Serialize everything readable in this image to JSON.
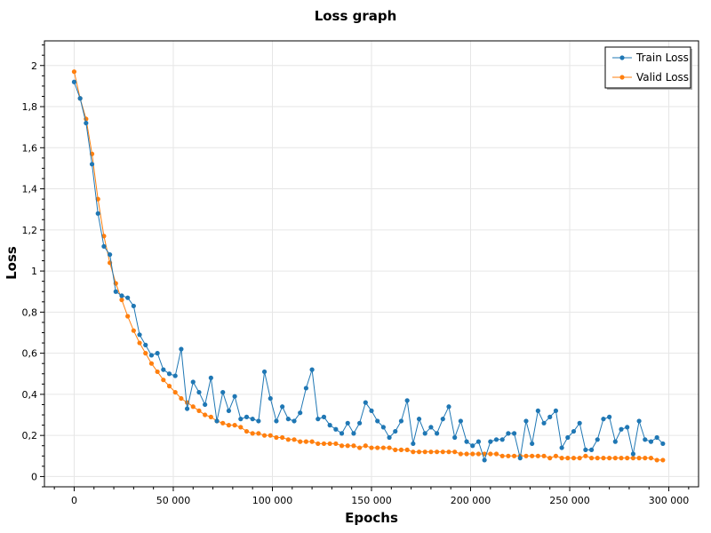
{
  "chart_data": {
    "type": "line",
    "title": "Loss graph",
    "xlabel": "Epochs",
    "ylabel": "Loss",
    "xlim": [
      -15000,
      315000
    ],
    "ylim": [
      -0.05,
      2.12
    ],
    "x_ticks": [
      0,
      50000,
      100000,
      150000,
      200000,
      250000,
      300000
    ],
    "x_tick_labels": [
      "0",
      "50 000",
      "100 000",
      "150 000",
      "200 000",
      "250 000",
      "300 000"
    ],
    "y_ticks": [
      0,
      0.2,
      0.4,
      0.6,
      0.8,
      1,
      1.2,
      1.4,
      1.6,
      1.8,
      2
    ],
    "y_tick_labels": [
      "0",
      "0,2",
      "0,4",
      "0,6",
      "0,8",
      "1",
      "1,2",
      "1,4",
      "1,6",
      "1,8",
      "2"
    ],
    "grid": true,
    "legend_position": "top-right",
    "x": [
      0,
      3000,
      6000,
      9000,
      12000,
      15000,
      18000,
      21000,
      24000,
      27000,
      30000,
      33000,
      36000,
      39000,
      42000,
      45000,
      48000,
      51000,
      54000,
      57000,
      60000,
      63000,
      66000,
      69000,
      72000,
      75000,
      78000,
      81000,
      84000,
      87000,
      90000,
      93000,
      96000,
      99000,
      102000,
      105000,
      108000,
      111000,
      114000,
      117000,
      120000,
      123000,
      126000,
      129000,
      132000,
      135000,
      138000,
      141000,
      144000,
      147000,
      150000,
      153000,
      156000,
      159000,
      162000,
      165000,
      168000,
      171000,
      174000,
      177000,
      180000,
      183000,
      186000,
      189000,
      192000,
      195000,
      198000,
      201000,
      204000,
      207000,
      210000,
      213000,
      216000,
      219000,
      222000,
      225000,
      228000,
      231000,
      234000,
      237000,
      240000,
      243000,
      246000,
      249000,
      252000,
      255000,
      258000,
      261000,
      264000,
      267000,
      270000,
      273000,
      276000,
      279000,
      282000,
      285000,
      288000,
      291000,
      294000,
      297000
    ],
    "series": [
      {
        "name": "Train Loss",
        "color": "#1f77b4",
        "values": [
          1.92,
          1.84,
          1.72,
          1.52,
          1.28,
          1.12,
          1.08,
          0.9,
          0.88,
          0.87,
          0.83,
          0.69,
          0.64,
          0.59,
          0.6,
          0.52,
          0.5,
          0.49,
          0.62,
          0.33,
          0.46,
          0.41,
          0.35,
          0.48,
          0.27,
          0.41,
          0.32,
          0.39,
          0.28,
          0.29,
          0.28,
          0.27,
          0.51,
          0.38,
          0.27,
          0.34,
          0.28,
          0.27,
          0.31,
          0.43,
          0.52,
          0.28,
          0.29,
          0.25,
          0.23,
          0.21,
          0.26,
          0.21,
          0.26,
          0.36,
          0.32,
          0.27,
          0.24,
          0.19,
          0.22,
          0.27,
          0.37,
          0.16,
          0.28,
          0.21,
          0.24,
          0.21,
          0.28,
          0.34,
          0.19,
          0.27,
          0.17,
          0.15,
          0.17,
          0.08,
          0.17,
          0.18,
          0.18,
          0.21,
          0.21,
          0.09,
          0.27,
          0.16,
          0.32,
          0.26,
          0.29,
          0.32,
          0.14,
          0.19,
          0.22,
          0.26,
          0.13,
          0.13,
          0.18,
          0.28,
          0.29,
          0.17,
          0.23,
          0.24,
          0.11,
          0.27,
          0.18,
          0.17,
          0.19,
          0.16
        ]
      },
      {
        "name": "Valid Loss",
        "color": "#ff7f0e",
        "values": [
          1.97,
          1.84,
          1.74,
          1.57,
          1.35,
          1.17,
          1.04,
          0.94,
          0.86,
          0.78,
          0.71,
          0.65,
          0.6,
          0.55,
          0.51,
          0.47,
          0.44,
          0.41,
          0.38,
          0.36,
          0.34,
          0.32,
          0.3,
          0.29,
          0.27,
          0.26,
          0.25,
          0.25,
          0.24,
          0.22,
          0.21,
          0.21,
          0.2,
          0.2,
          0.19,
          0.19,
          0.18,
          0.18,
          0.17,
          0.17,
          0.17,
          0.16,
          0.16,
          0.16,
          0.16,
          0.15,
          0.15,
          0.15,
          0.14,
          0.15,
          0.14,
          0.14,
          0.14,
          0.14,
          0.13,
          0.13,
          0.13,
          0.12,
          0.12,
          0.12,
          0.12,
          0.12,
          0.12,
          0.12,
          0.12,
          0.11,
          0.11,
          0.11,
          0.11,
          0.11,
          0.11,
          0.11,
          0.1,
          0.1,
          0.1,
          0.1,
          0.1,
          0.1,
          0.1,
          0.1,
          0.09,
          0.1,
          0.09,
          0.09,
          0.09,
          0.09,
          0.1,
          0.09,
          0.09,
          0.09,
          0.09,
          0.09,
          0.09,
          0.09,
          0.09,
          0.09,
          0.09,
          0.09,
          0.08,
          0.08
        ]
      }
    ]
  }
}
